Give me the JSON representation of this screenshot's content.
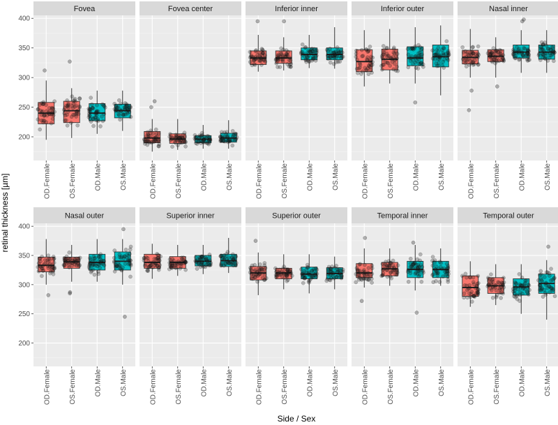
{
  "chart_data": {
    "type": "boxplot",
    "layout": "faceted 2x5",
    "xlabel": "Side / Sex",
    "ylabel": "retinal thickness [µm]",
    "ylim": [
      160,
      405
    ],
    "yticks": [
      200,
      250,
      300,
      350,
      400
    ],
    "categories": [
      "OD.Female",
      "OS.Female",
      "OD.Male",
      "OS.Male"
    ],
    "category_colors": [
      "#F8766D",
      "#F8766D",
      "#00BFC4",
      "#00BFC4"
    ],
    "grid": true,
    "facets": [
      {
        "title": "Fovea",
        "series": [
          {
            "name": "OD.Female",
            "min": 195,
            "q1": 222,
            "median": 240,
            "q3": 258,
            "max": 295,
            "outliers": [
              312
            ]
          },
          {
            "name": "OS.Female",
            "min": 198,
            "q1": 224,
            "median": 244,
            "q3": 260,
            "max": 282,
            "outliers": [
              327
            ]
          },
          {
            "name": "OD.Male",
            "min": 205,
            "q1": 227,
            "median": 240,
            "q3": 256,
            "max": 278,
            "outliers": []
          },
          {
            "name": "OS.Male",
            "min": 210,
            "q1": 232,
            "median": 244,
            "q3": 255,
            "max": 278,
            "outliers": []
          }
        ]
      },
      {
        "title": "Fovea center",
        "series": [
          {
            "name": "OD.Female",
            "min": 175,
            "q1": 190,
            "median": 198,
            "q3": 209,
            "max": 230,
            "outliers": [
              260,
              250
            ]
          },
          {
            "name": "OS.Female",
            "min": 178,
            "q1": 189,
            "median": 196,
            "q3": 205,
            "max": 230,
            "outliers": []
          },
          {
            "name": "OD.Male",
            "min": 180,
            "q1": 190,
            "median": 196,
            "q3": 202,
            "max": 220,
            "outliers": []
          },
          {
            "name": "OS.Male",
            "min": 180,
            "q1": 191,
            "median": 198,
            "q3": 206,
            "max": 228,
            "outliers": []
          }
        ]
      },
      {
        "title": "Inferior inner",
        "series": [
          {
            "name": "OD.Female",
            "min": 310,
            "q1": 322,
            "median": 333,
            "q3": 345,
            "max": 372,
            "outliers": [
              395
            ]
          },
          {
            "name": "OS.Female",
            "min": 312,
            "q1": 324,
            "median": 333,
            "q3": 345,
            "max": 368,
            "outliers": [
              395
            ]
          },
          {
            "name": "OD.Male",
            "min": 316,
            "q1": 330,
            "median": 339,
            "q3": 350,
            "max": 372,
            "outliers": []
          },
          {
            "name": "OS.Male",
            "min": 315,
            "q1": 330,
            "median": 339,
            "q3": 350,
            "max": 385,
            "outliers": []
          }
        ]
      },
      {
        "title": "Inferior outer",
        "series": [
          {
            "name": "OD.Female",
            "min": 285,
            "q1": 310,
            "median": 327,
            "q3": 347,
            "max": 380,
            "outliers": []
          },
          {
            "name": "OS.Female",
            "min": 290,
            "q1": 313,
            "median": 331,
            "q3": 348,
            "max": 382,
            "outliers": []
          },
          {
            "name": "OD.Male",
            "min": 290,
            "q1": 320,
            "median": 333,
            "q3": 352,
            "max": 385,
            "outliers": [
              258
            ]
          },
          {
            "name": "OS.Male",
            "min": 270,
            "q1": 318,
            "median": 335,
            "q3": 355,
            "max": 388,
            "outliers": []
          }
        ]
      },
      {
        "title": "Nasal inner",
        "series": [
          {
            "name": "OD.Female",
            "min": 300,
            "q1": 323,
            "median": 334,
            "q3": 346,
            "max": 382,
            "outliers": [
              278,
              245
            ]
          },
          {
            "name": "OS.Female",
            "min": 300,
            "q1": 327,
            "median": 336,
            "q3": 347,
            "max": 368,
            "outliers": [
              285
            ]
          },
          {
            "name": "OD.Male",
            "min": 308,
            "q1": 333,
            "median": 343,
            "q3": 355,
            "max": 380,
            "outliers": [
              395,
              398
            ]
          },
          {
            "name": "OS.Male",
            "min": 308,
            "q1": 331,
            "median": 343,
            "q3": 355,
            "max": 380,
            "outliers": []
          }
        ]
      },
      {
        "title": "Nasal outer",
        "series": [
          {
            "name": "OD.Female",
            "min": 300,
            "q1": 322,
            "median": 333,
            "q3": 347,
            "max": 378,
            "outliers": [
              282
            ]
          },
          {
            "name": "OS.Female",
            "min": 305,
            "q1": 328,
            "median": 339,
            "q3": 347,
            "max": 368,
            "outliers": [
              285,
              287
            ]
          },
          {
            "name": "OD.Male",
            "min": 305,
            "q1": 325,
            "median": 338,
            "q3": 352,
            "max": 378,
            "outliers": []
          },
          {
            "name": "OS.Male",
            "min": 300,
            "q1": 325,
            "median": 340,
            "q3": 356,
            "max": 378,
            "outliers": [
              245,
              395
            ]
          }
        ]
      },
      {
        "title": "Superior inner",
        "series": [
          {
            "name": "OD.Female",
            "min": 310,
            "q1": 328,
            "median": 338,
            "q3": 352,
            "max": 370,
            "outliers": []
          },
          {
            "name": "OS.Female",
            "min": 315,
            "q1": 328,
            "median": 338,
            "q3": 348,
            "max": 368,
            "outliers": []
          },
          {
            "name": "OD.Male",
            "min": 318,
            "q1": 332,
            "median": 340,
            "q3": 350,
            "max": 368,
            "outliers": []
          },
          {
            "name": "OS.Male",
            "min": 320,
            "q1": 331,
            "median": 341,
            "q3": 352,
            "max": 380,
            "outliers": []
          }
        ]
      },
      {
        "title": "Superior outer",
        "series": [
          {
            "name": "OD.Female",
            "min": 282,
            "q1": 308,
            "median": 320,
            "q3": 331,
            "max": 355,
            "outliers": [
              375
            ]
          },
          {
            "name": "OS.Female",
            "min": 292,
            "q1": 310,
            "median": 320,
            "q3": 328,
            "max": 352,
            "outliers": []
          },
          {
            "name": "OD.Male",
            "min": 285,
            "q1": 310,
            "median": 318,
            "q3": 330,
            "max": 352,
            "outliers": []
          },
          {
            "name": "OS.Male",
            "min": 292,
            "q1": 310,
            "median": 319,
            "q3": 329,
            "max": 348,
            "outliers": []
          }
        ]
      },
      {
        "title": "Temporal inner",
        "series": [
          {
            "name": "OD.Female",
            "min": 295,
            "q1": 312,
            "median": 320,
            "q3": 336,
            "max": 362,
            "outliers": [
              272,
              380
            ]
          },
          {
            "name": "OS.Female",
            "min": 298,
            "q1": 315,
            "median": 327,
            "q3": 338,
            "max": 362,
            "outliers": []
          },
          {
            "name": "OD.Male",
            "min": 290,
            "q1": 312,
            "median": 326,
            "q3": 340,
            "max": 368,
            "outliers": [
              252,
              372
            ]
          },
          {
            "name": "OS.Male",
            "min": 298,
            "q1": 312,
            "median": 326,
            "q3": 340,
            "max": 362,
            "outliers": []
          }
        ]
      },
      {
        "title": "Temporal outer",
        "series": [
          {
            "name": "OD.Female",
            "min": 262,
            "q1": 280,
            "median": 295,
            "q3": 315,
            "max": 340,
            "outliers": []
          },
          {
            "name": "OS.Female",
            "min": 265,
            "q1": 285,
            "median": 298,
            "q3": 312,
            "max": 335,
            "outliers": []
          },
          {
            "name": "OD.Male",
            "min": 250,
            "q1": 282,
            "median": 296,
            "q3": 310,
            "max": 335,
            "outliers": []
          },
          {
            "name": "OS.Male",
            "min": 240,
            "q1": 285,
            "median": 302,
            "q3": 318,
            "max": 342,
            "outliers": [
              365
            ]
          }
        ]
      }
    ]
  }
}
